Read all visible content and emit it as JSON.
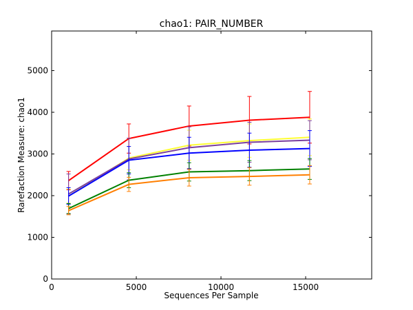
{
  "chart_data": {
    "type": "line",
    "title": "chao1: PAIR_NUMBER",
    "xlabel": "Sequences Per Sample",
    "ylabel": "Rarefaction Measure: chao1",
    "xlim": [
      0,
      18900
    ],
    "ylim": [
      0,
      5950
    ],
    "xticks": [
      0,
      5000,
      10000,
      15000
    ],
    "yticks": [
      0,
      1000,
      2000,
      3000,
      4000,
      5000
    ],
    "grid": false,
    "x": [
      1000,
      4560,
      8120,
      11680,
      15240
    ],
    "series": [
      {
        "color": "#ff0000",
        "values": [
          2360,
          3370,
          3670,
          3810,
          3880
        ],
        "err": [
          220,
          350,
          480,
          570,
          620
        ]
      },
      {
        "color": "#ffff33",
        "values": [
          1990,
          2900,
          3210,
          3320,
          3400
        ],
        "err": [
          170,
          280,
          360,
          400,
          440
        ]
      },
      {
        "color": "#7b3f9e",
        "values": [
          2040,
          2880,
          3150,
          3280,
          3330
        ],
        "err": [
          480,
          500,
          500,
          480,
          470
        ]
      },
      {
        "color": "#0000ff",
        "values": [
          1990,
          2850,
          3020,
          3090,
          3130
        ],
        "err": [
          200,
          330,
          380,
          410,
          430
        ]
      },
      {
        "color": "#008000",
        "values": [
          1690,
          2370,
          2570,
          2600,
          2640
        ],
        "err": [
          120,
          180,
          220,
          240,
          250
        ]
      },
      {
        "color": "#ff7f00",
        "values": [
          1640,
          2270,
          2430,
          2460,
          2500
        ],
        "err": [
          100,
          170,
          200,
          210,
          220
        ]
      }
    ]
  }
}
